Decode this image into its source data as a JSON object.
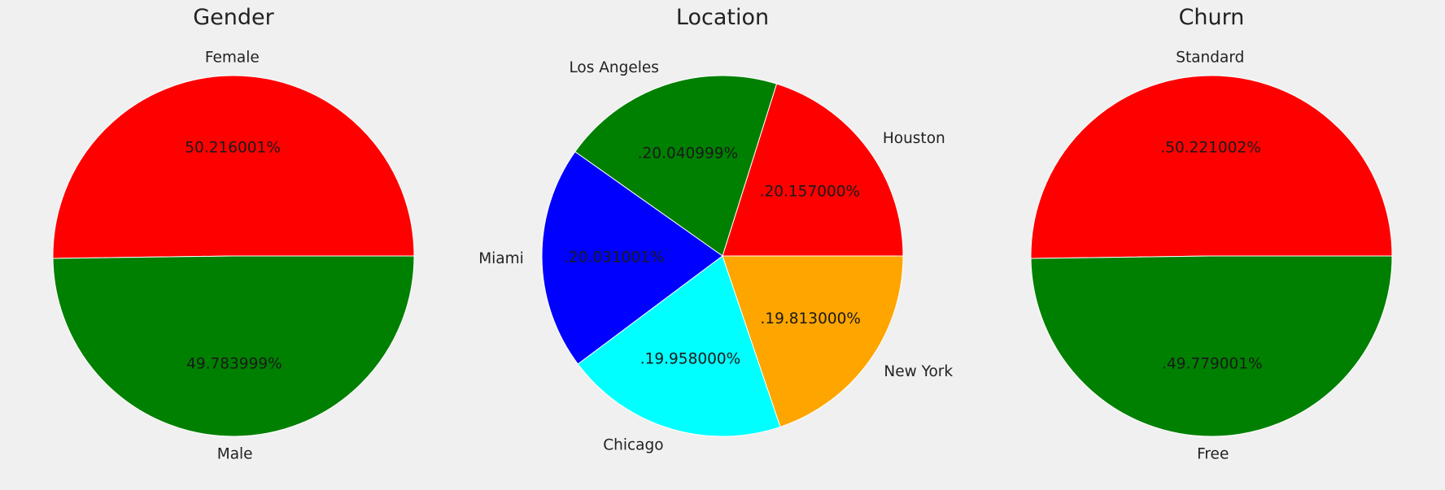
{
  "chart_data": [
    {
      "type": "pie",
      "title": "Gender",
      "start_angle_deg": 0,
      "counterclock": true,
      "slices": [
        {
          "label": "Female",
          "value": 50.216001,
          "pct_label": "50.216001%",
          "color": "#ff0000"
        },
        {
          "label": "Male",
          "value": 49.783999,
          "pct_label": "49.783999%",
          "color": "#008000"
        }
      ]
    },
    {
      "type": "pie",
      "title": "Location",
      "start_angle_deg": 0,
      "counterclock": true,
      "slices": [
        {
          "label": "Houston",
          "value": 20.157,
          "pct_label": ".20.157000%",
          "color": "#ff0000"
        },
        {
          "label": "Los Angeles",
          "value": 20.040999,
          "pct_label": ".20.040999%",
          "color": "#008000"
        },
        {
          "label": "Miami",
          "value": 20.031001,
          "pct_label": ".20.031001%",
          "color": "#0000ff"
        },
        {
          "label": "Chicago",
          "value": 19.958,
          "pct_label": ".19.958000%",
          "color": "#00ffff"
        },
        {
          "label": "New York",
          "value": 19.813,
          "pct_label": ".19.813000%",
          "color": "#ffa500"
        }
      ]
    },
    {
      "type": "pie",
      "title": "Churn",
      "start_angle_deg": 0,
      "counterclock": true,
      "slices": [
        {
          "label": "Standard",
          "value": 50.221002,
          "pct_label": ".50.221002%",
          "color": "#ff0000"
        },
        {
          "label": "Free",
          "value": 49.779001,
          "pct_label": ".49.779001%",
          "color": "#008000"
        }
      ]
    }
  ]
}
